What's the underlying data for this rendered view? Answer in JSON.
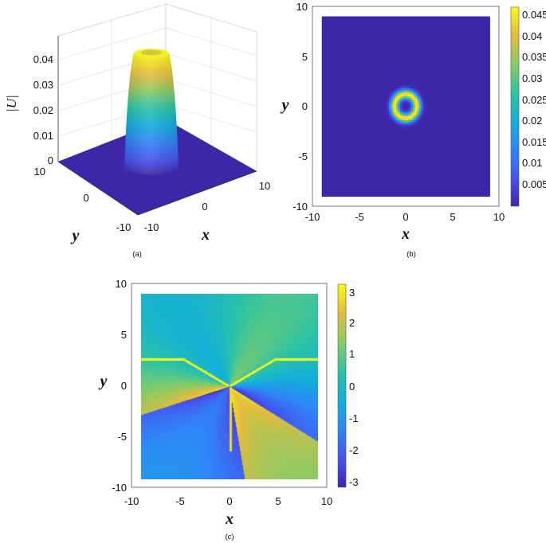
{
  "chart_data": [
    {
      "type": "surface",
      "panel_label": "(a)",
      "xlabel": "x",
      "ylabel": "y",
      "zlabel": "|U|",
      "xlim": [
        -10,
        10
      ],
      "ylim": [
        -10,
        10
      ],
      "zlim": [
        0,
        0.045
      ],
      "x_ticks": [
        "-10",
        "0",
        "10"
      ],
      "y_ticks": [
        "10",
        "0",
        "-10"
      ],
      "z_ticks": [
        "0",
        "0.01",
        "0.02",
        "0.03",
        "0.04"
      ],
      "colormap": "parula",
      "description_values": {
        "peak": 0.045,
        "ring_radius": 1.2,
        "core_radius": 0.5
      }
    },
    {
      "type": "heatmap",
      "panel_label": "(b)",
      "xlabel": "x",
      "ylabel": "y",
      "xlim": [
        -10,
        10
      ],
      "ylim": [
        -10,
        10
      ],
      "x_ticks": [
        "-10",
        "-5",
        "0",
        "5",
        "10"
      ],
      "y_ticks": [
        "10",
        "5",
        "0",
        "-5",
        "-10"
      ],
      "colorbar_ticks": [
        "0.045",
        "0.04",
        "0.035",
        "0.03",
        "0.025",
        "0.02",
        "0.015",
        "0.01",
        "0.005"
      ],
      "colorbar_range": [
        0.0,
        0.046
      ],
      "colormap": "parula",
      "data_extent": [
        -9,
        9
      ],
      "ring": {
        "center": [
          0,
          0
        ],
        "radius": 1.2,
        "peak": 0.045
      }
    },
    {
      "type": "heatmap",
      "panel_label": "(c)",
      "xlabel": "x",
      "ylabel": "y",
      "xlim": [
        -10,
        10
      ],
      "ylim": [
        -10,
        10
      ],
      "x_ticks": [
        "-10",
        "-5",
        "0",
        "5",
        "10"
      ],
      "y_ticks": [
        "10",
        "5",
        "0",
        "-5",
        "-10"
      ],
      "colorbar_ticks": [
        "3",
        "2",
        "1",
        "0",
        "-1",
        "-2",
        "-3"
      ],
      "colorbar_range": [
        -3.2,
        3.2
      ],
      "colormap": "parula",
      "data_extent": [
        -9,
        9
      ],
      "quantity": "phase"
    }
  ]
}
